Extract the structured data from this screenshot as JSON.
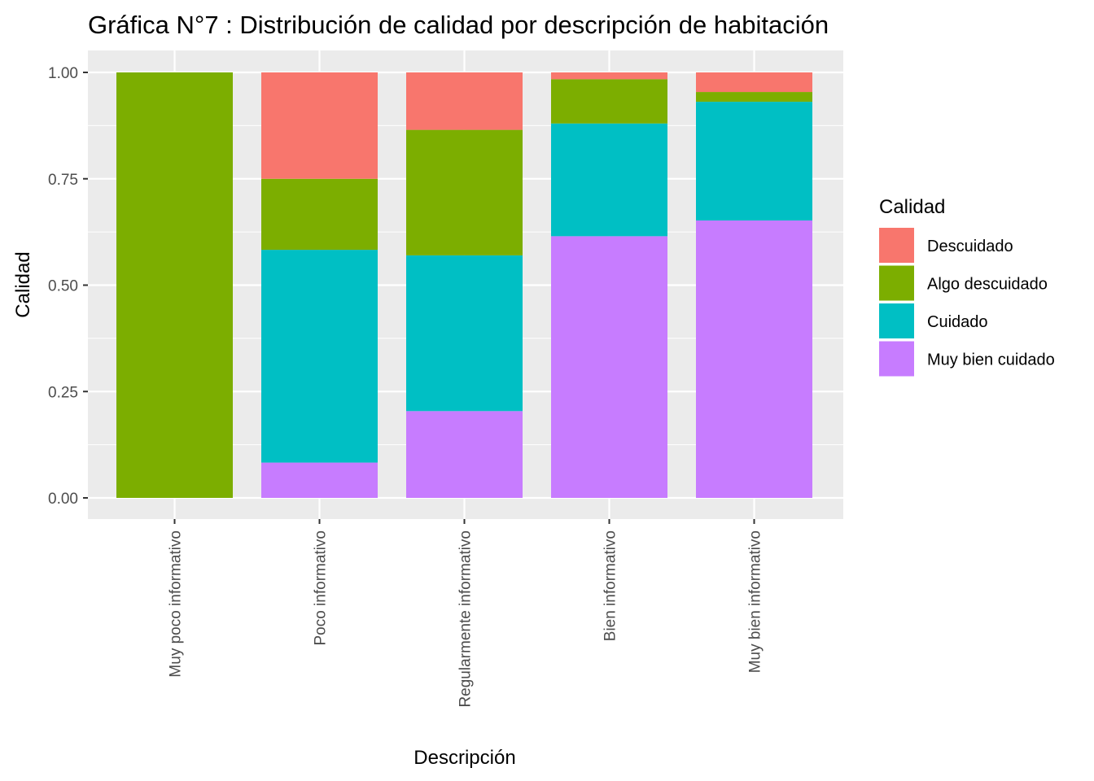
{
  "chart_data": {
    "type": "bar",
    "stacked": true,
    "title": "Gráfica N°7 : Distribución de calidad por descripción de habitación",
    "xlabel": "Descripción",
    "ylabel": "Calidad",
    "ylim": [
      0,
      1
    ],
    "yticks": [
      "0.00",
      "0.25",
      "0.50",
      "0.75",
      "1.00"
    ],
    "categories": [
      "Muy poco informativo",
      "Poco informativo",
      "Regularmente informativo",
      "Bien informativo",
      "Muy bien informativo"
    ],
    "legend": {
      "title": "Calidad",
      "position": "right"
    },
    "grid": true,
    "series": [
      {
        "name": "Muy bien cuidado",
        "color": "#C77CFF",
        "values": [
          0.0,
          0.083,
          0.204,
          0.615,
          0.652
        ]
      },
      {
        "name": "Cuidado",
        "color": "#00BFC4",
        "values": [
          0.0,
          0.5,
          0.366,
          0.265,
          0.279
        ]
      },
      {
        "name": "Algo descuidado",
        "color": "#7CAE00",
        "values": [
          1.0,
          0.167,
          0.295,
          0.104,
          0.023
        ]
      },
      {
        "name": "Descuidado",
        "color": "#F8766D",
        "values": [
          0.0,
          0.25,
          0.135,
          0.016,
          0.046
        ]
      }
    ]
  }
}
